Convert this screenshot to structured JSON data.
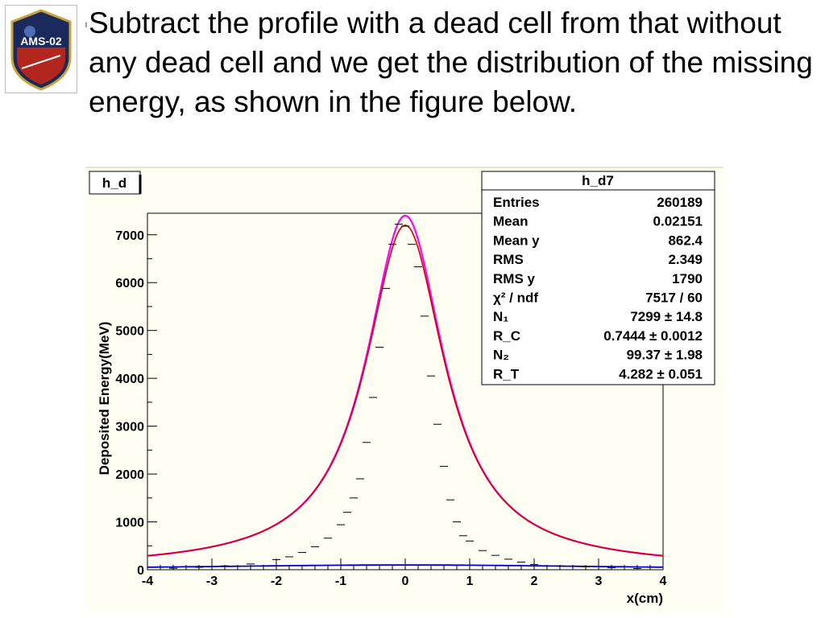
{
  "slide": {
    "bullet_mark": "l",
    "text": "Subtract the profile with a dead cell from that without any dead cell and we get the distribution of the missing energy, as shown in the figure below."
  },
  "logo": {
    "text": "AMS-02"
  },
  "chart_data": {
    "type": "line",
    "title_box": "h_d",
    "xlabel": "x(cm)",
    "ylabel": "Deposited Energy(MeV)",
    "xlim": [
      -4,
      4
    ],
    "ylim": [
      0,
      7450
    ],
    "x_ticks": [
      -4,
      -3,
      -2,
      -1,
      0,
      1,
      2,
      3,
      4
    ],
    "y_ticks": [
      0,
      1000,
      2000,
      3000,
      4000,
      5000,
      6000,
      7000
    ],
    "stats": {
      "title": "h_d7",
      "rows": [
        {
          "label": "Entries",
          "value": "260189"
        },
        {
          "label": "Mean",
          "value": "0.02151"
        },
        {
          "label": "Mean y",
          "value": "862.4"
        },
        {
          "label": "RMS",
          "value": "2.349"
        },
        {
          "label": "RMS y",
          "value": "1790"
        },
        {
          "label": "χ² / ndf",
          "value": "7517 / 60"
        },
        {
          "label": "N₁",
          "value": "7299 ± 14.8"
        },
        {
          "label": "R_C",
          "value": "0.7444 ± 0.0012"
        },
        {
          "label": "N₂",
          "value": "99.37 ± 1.98"
        },
        {
          "label": "R_T",
          "value": "4.282 ± 0.051"
        }
      ]
    },
    "fit": {
      "N1": 7299,
      "Rc": 0.7444,
      "N2": 99.37,
      "Rt": 4.282
    },
    "series": [
      {
        "kind": "points",
        "color": "#000000",
        "x": [
          -3.6,
          -3.2,
          -2.8,
          -2.4,
          -2.0,
          -1.8,
          -1.6,
          -1.4,
          -1.2,
          -1.0,
          -0.9,
          -0.8,
          -0.7,
          -0.6,
          -0.5,
          -0.4,
          -0.3,
          -0.2,
          -0.1,
          0.0,
          0.1,
          0.2,
          0.3,
          0.4,
          0.5,
          0.6,
          0.7,
          0.8,
          0.9,
          1.0,
          1.2,
          1.4,
          1.6,
          1.8,
          2.0,
          2.4,
          2.8,
          3.2,
          3.6
        ],
        "y": [
          30,
          50,
          80,
          120,
          210,
          270,
          360,
          480,
          660,
          940,
          1200,
          1500,
          1900,
          2660,
          3600,
          4650,
          5880,
          6800,
          7220,
          7180,
          6800,
          6330,
          5300,
          4050,
          3040,
          2160,
          1460,
          1000,
          710,
          600,
          400,
          300,
          220,
          160,
          110,
          80,
          60,
          40,
          25
        ]
      },
      {
        "kind": "model",
        "color": "#ff00ff",
        "width": 2.2,
        "peak": 7400,
        "rc": 0.735
      },
      {
        "kind": "model",
        "color": "#d00000",
        "width": 1.6,
        "peak": 7200,
        "rc": 0.7444
      },
      {
        "kind": "tail",
        "color": "#0000cc",
        "width": 1.8,
        "amp": 99.37,
        "rt": 4.282
      }
    ]
  }
}
